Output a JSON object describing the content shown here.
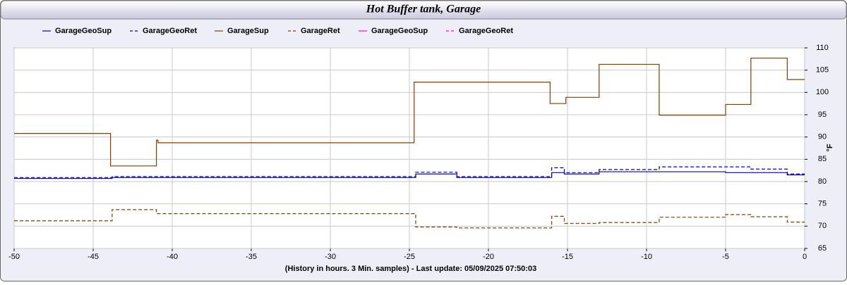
{
  "chart_data": {
    "type": "line",
    "title": "Hot Buffer tank, Garage",
    "x_label": "(History in hours. 3 Min. samples) - Last update: 05/09/2025 07:50:03",
    "y_label": "°F",
    "xlim": [
      -50,
      0
    ],
    "xticks": [
      -50,
      -45,
      -40,
      -35,
      -30,
      -25,
      -20,
      -15,
      -10,
      -5,
      0
    ],
    "ylim": [
      65,
      110
    ],
    "yticks": [
      65,
      70,
      75,
      80,
      85,
      90,
      95,
      100,
      105,
      110
    ],
    "grid": true,
    "series": [
      {
        "name": "GarageGeoSup",
        "color": "#0000cc",
        "dash": false,
        "x": [
          -50,
          -43.8,
          -43.8,
          -24.6,
          -24.6,
          -22,
          -22,
          -16,
          -16,
          -15.2,
          -15.2,
          -13,
          -13,
          -5,
          -5,
          -1.1,
          -1.1,
          0
        ],
        "values": [
          80.7,
          80.7,
          80.9,
          80.9,
          81.7,
          81.7,
          80.9,
          80.9,
          82.0,
          82.0,
          81.7,
          81.7,
          82.2,
          82.2,
          82.0,
          82.0,
          81.5,
          81.5
        ]
      },
      {
        "name": "GarageGeoRet",
        "color": "#0000cc",
        "dash": true,
        "x": [
          -50,
          -43.8,
          -43.8,
          -24.6,
          -24.6,
          -22,
          -22,
          -16,
          -16,
          -15.2,
          -15.2,
          -13,
          -13,
          -9.2,
          -9.2,
          -3.4,
          -3.4,
          -1.1,
          -1.1,
          0
        ],
        "values": [
          80.9,
          80.9,
          81.1,
          81.1,
          82.1,
          82.1,
          81.1,
          81.1,
          83.1,
          83.1,
          82.0,
          82.0,
          82.7,
          82.7,
          83.3,
          83.3,
          82.8,
          82.8,
          81.7,
          81.7
        ]
      },
      {
        "name": "GarageSup",
        "color": "#804000",
        "dash": false,
        "x": [
          -50,
          -43.9,
          -43.9,
          -41,
          -41,
          -40.9,
          -40.9,
          -24.7,
          -24.7,
          -16.1,
          -16.1,
          -15.1,
          -15.1,
          -13,
          -13,
          -9.2,
          -9.2,
          -5,
          -5,
          -3.4,
          -3.4,
          -1.1,
          -1.1,
          0
        ],
        "values": [
          90.8,
          90.8,
          83.5,
          83.5,
          89.3,
          89.3,
          88.7,
          88.7,
          102.3,
          102.3,
          97.5,
          97.5,
          98.9,
          98.9,
          106.3,
          106.3,
          94.9,
          94.9,
          97.3,
          97.3,
          107.7,
          107.7,
          102.9,
          102.9
        ]
      },
      {
        "name": "GarageRet",
        "color": "#804000",
        "dash": true,
        "x": [
          -50,
          -43.8,
          -43.8,
          -41,
          -41,
          -24.6,
          -24.6,
          -22,
          -22,
          -16,
          -16,
          -15.2,
          -15.2,
          -13,
          -13,
          -9.2,
          -9.2,
          -5,
          -5,
          -3.4,
          -3.4,
          -1.1,
          -1.1,
          0
        ],
        "values": [
          71.2,
          71.2,
          73.7,
          73.7,
          72.8,
          72.8,
          69.8,
          69.8,
          69.6,
          69.6,
          72.2,
          72.2,
          70.6,
          70.6,
          70.8,
          70.8,
          72.0,
          72.0,
          72.6,
          72.6,
          72.1,
          72.1,
          70.9,
          70.9
        ]
      },
      {
        "name": "GarageGeoSup",
        "color": "#ff00ff",
        "dash": false,
        "x": [],
        "values": []
      },
      {
        "name": "GarageGeoRet",
        "color": "#ff00ff",
        "dash": true,
        "x": [],
        "values": []
      }
    ]
  }
}
